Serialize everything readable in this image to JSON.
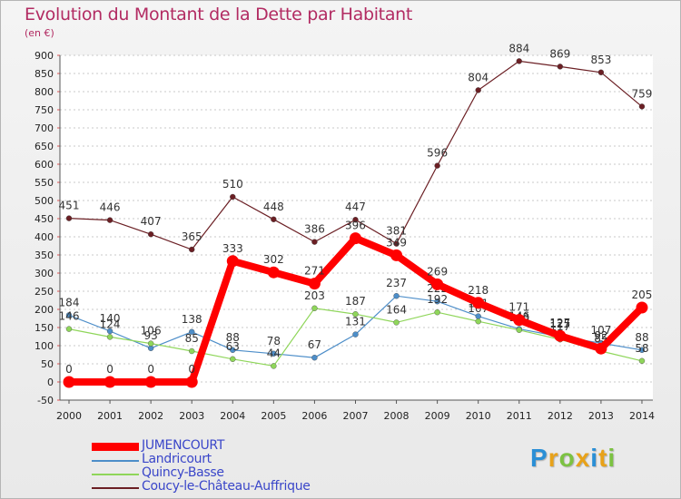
{
  "header": {
    "title": "Evolution du Montant de la Dette par Habitant",
    "subtitle": "(en €)"
  },
  "brand": {
    "logo_text": [
      "P",
      "r",
      "o",
      "x",
      "i",
      "t",
      "i"
    ],
    "logo_colors": [
      "#2a8fd6",
      "#e8a21a",
      "#7cc242",
      "#e8a21a",
      "#2a8fd6",
      "#e8a21a",
      "#7cc242"
    ]
  },
  "chart_data": {
    "type": "line",
    "title": "Evolution du Montant de la Dette par Habitant",
    "subtitle": "(en €)",
    "xlabel": "",
    "ylabel": "",
    "ylim": [
      -50,
      900
    ],
    "yticks": [
      -50,
      0,
      50,
      100,
      150,
      200,
      250,
      300,
      350,
      400,
      450,
      500,
      550,
      600,
      650,
      700,
      750,
      800,
      850,
      900
    ],
    "grid": "horizontal dashed",
    "legend_position": "bottom-left",
    "categories": [
      "2000",
      "2001",
      "2002",
      "2003",
      "2004",
      "2005",
      "2006",
      "2007",
      "2008",
      "2009",
      "2010",
      "2011",
      "2012",
      "2013",
      "2014"
    ],
    "series": [
      {
        "name": "Coucy-le-Château-Auffrique",
        "color": "#6b1f24",
        "width": 1,
        "values": [
          451,
          446,
          407,
          365,
          510,
          448,
          386,
          447,
          381,
          596,
          804,
          884,
          869,
          853,
          759
        ]
      },
      {
        "name": "Landricourt",
        "color": "#4d8ec9",
        "width": 1,
        "values": [
          184,
          140,
          93,
          138,
          88,
          78,
          67,
          131,
          237,
          222,
          181,
          146,
          125,
          107,
          88
        ]
      },
      {
        "name": "Quincy-Basse",
        "color": "#8fd65a",
        "width": 1,
        "values": [
          146,
          124,
          106,
          85,
          63,
          44,
          203,
          187,
          164,
          192,
          167,
          143,
          117,
          85,
          58
        ]
      },
      {
        "name": "JUMENCOURT",
        "color": "#ff0000",
        "width": 8,
        "values": [
          0,
          0,
          0,
          0,
          333,
          302,
          271,
          396,
          349,
          269,
          218,
          171,
          127,
          92,
          205
        ]
      }
    ]
  }
}
